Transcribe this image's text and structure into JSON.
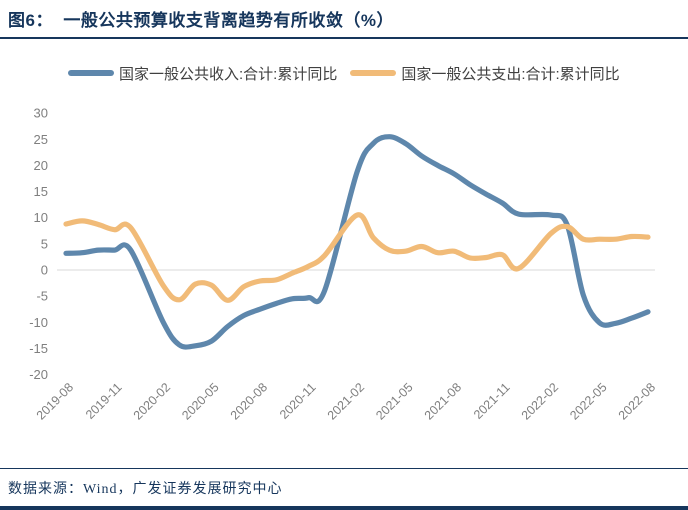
{
  "header": {
    "title": "图6：  一般公共预算收支背离趋势有所收敛（%）"
  },
  "footer": {
    "source": "数据来源：Wind，广发证券发展研究中心"
  },
  "colors": {
    "navy": "#16365C",
    "revenue_line": "#5E87AC",
    "expenditure_line": "#F1BB78",
    "axis_label_gray": "#7F7F7F",
    "zero_gridline": "#D9D9D9"
  },
  "chart_data": {
    "type": "line",
    "title": "一般公共预算收支背离趋势有所收敛（%）",
    "xlabel": "",
    "ylabel": "",
    "ylim": [
      -20,
      30
    ],
    "ytick_step": 5,
    "yticks": [
      30,
      25,
      20,
      15,
      10,
      5,
      0,
      -5,
      -10,
      -15,
      -20
    ],
    "grid": "horizontal-zero-line-only",
    "legend_position": "top",
    "x": [
      "2019-08",
      "2019-09",
      "2019-10",
      "2019-11",
      "2019-12",
      "2020-01",
      "2020-02",
      "2020-03",
      "2020-04",
      "2020-05",
      "2020-06",
      "2020-07",
      "2020-08",
      "2020-09",
      "2020-10",
      "2020-11",
      "2020-12",
      "2021-01",
      "2021-02",
      "2021-03",
      "2021-04",
      "2021-05",
      "2021-06",
      "2021-07",
      "2021-08",
      "2021-09",
      "2021-10",
      "2021-11",
      "2021-12",
      "2022-01",
      "2022-02",
      "2022-03",
      "2022-04",
      "2022-05",
      "2022-06",
      "2022-07",
      "2022-08"
    ],
    "xtick_every": 3,
    "xtick_labels": [
      "2019-08",
      "2019-11",
      "2020-02",
      "2020-05",
      "2020-08",
      "2020-11",
      "2021-02",
      "2021-05",
      "2021-08",
      "2021-11",
      "2022-02",
      "2022-05",
      "2022-08"
    ],
    "series": [
      {
        "key": "revenue",
        "name": "国家一般公共收入:合计:累计同比",
        "color": "#5E87AC",
        "values": [
          3.2,
          3.3,
          3.8,
          3.8,
          3.8,
          null,
          -9.9,
          -14.3,
          -14.5,
          -13.6,
          -10.8,
          -8.7,
          -7.5,
          -6.4,
          -5.5,
          -5.3,
          -3.9,
          null,
          18.7,
          24.2,
          25.5,
          24.2,
          21.8,
          20.0,
          18.4,
          16.3,
          14.5,
          12.8,
          10.7,
          null,
          10.5,
          8.6,
          -4.8,
          -10.1,
          -10.2,
          -9.2,
          -8.0
        ]
      },
      {
        "key": "expenditure",
        "name": "国家一般公共支出:合计:累计同比",
        "color": "#F1BB78",
        "values": [
          8.8,
          9.4,
          8.7,
          7.7,
          8.1,
          null,
          -2.9,
          -5.7,
          -2.7,
          -2.9,
          -5.8,
          -3.2,
          -2.1,
          -1.9,
          -0.6,
          0.7,
          2.8,
          null,
          10.5,
          6.2,
          3.8,
          3.6,
          4.5,
          3.3,
          3.6,
          2.3,
          2.4,
          2.9,
          0.3,
          null,
          7.0,
          8.3,
          5.9,
          5.9,
          5.9,
          6.4,
          6.3
        ]
      }
    ]
  }
}
